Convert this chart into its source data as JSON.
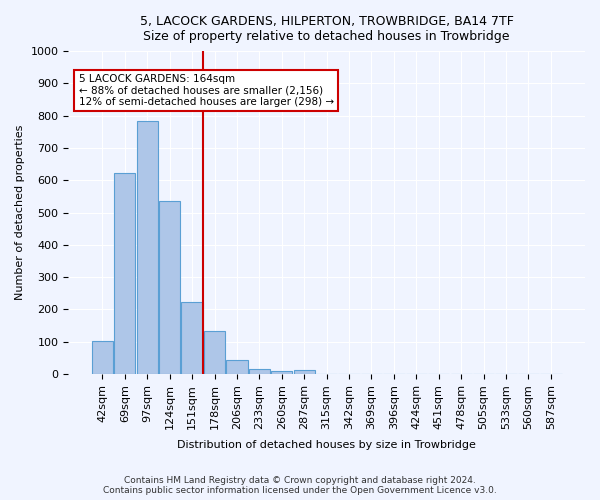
{
  "title": "5, LACOCK GARDENS, HILPERTON, TROWBRIDGE, BA14 7TF",
  "subtitle": "Size of property relative to detached houses in Trowbridge",
  "xlabel": "Distribution of detached houses by size in Trowbridge",
  "ylabel": "Number of detached properties",
  "bar_labels": [
    "42sqm",
    "69sqm",
    "97sqm",
    "124sqm",
    "151sqm",
    "178sqm",
    "206sqm",
    "233sqm",
    "260sqm",
    "287sqm",
    "315sqm",
    "342sqm",
    "369sqm",
    "396sqm",
    "424sqm",
    "451sqm",
    "478sqm",
    "505sqm",
    "533sqm",
    "560sqm",
    "587sqm"
  ],
  "bar_values": [
    103,
    622,
    785,
    535,
    222,
    133,
    42,
    17,
    10,
    11,
    0,
    0,
    0,
    0,
    0,
    0,
    0,
    0,
    0,
    0,
    0
  ],
  "bar_color": "#aec6e8",
  "bar_edge_color": "#5a9fd4",
  "vline_x_index": 4,
  "vline_color": "#cc0000",
  "ylim": [
    0,
    1000
  ],
  "annotation_text": "5 LACOCK GARDENS: 164sqm\n← 88% of detached houses are smaller (2,156)\n12% of semi-detached houses are larger (298) →",
  "annotation_box_color": "#ffffff",
  "annotation_box_edge_color": "#cc0000",
  "footer_text": "Contains HM Land Registry data © Crown copyright and database right 2024.\nContains public sector information licensed under the Open Government Licence v3.0.",
  "bg_color": "#f0f4ff",
  "grid_color": "#ffffff"
}
